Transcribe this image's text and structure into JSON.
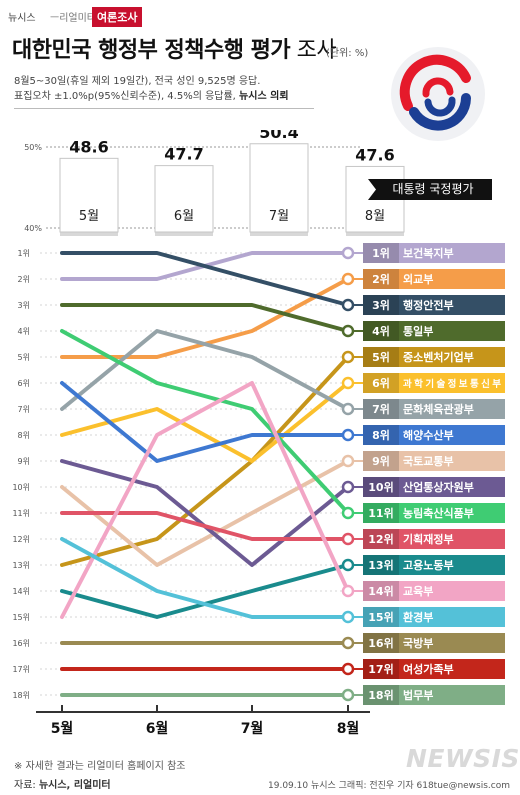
{
  "header": {
    "brand": "뉴시스",
    "brand_sub": "ㅡ리얼미터",
    "badge": "여론조사",
    "title_main": "대한민국 행정부 정책수행 평가",
    "title_light": " 조사",
    "unit": "(단위: %)",
    "info_line1": "8월5~30일(휴일 제외 19일간), 전국 성인 9,525명 응답.",
    "info_line2a": "표집오차 ±1.0%p(95%신뢰수준), 4.5%의 응답률, ",
    "info_line2b": "뉴시스 의뢰"
  },
  "emblem": {
    "name": "government-emblem",
    "colors": [
      "#1c3f94",
      "#e51a2b"
    ]
  },
  "chart_data": [
    {
      "type": "bar",
      "categories": [
        "5월",
        "6월",
        "7월",
        "8월"
      ],
      "values": [
        48.6,
        47.7,
        50.4,
        47.6
      ],
      "ytick_labels": [
        "50%",
        "40%"
      ],
      "ylim": [
        40,
        50
      ],
      "series_label": "대통령 국정평가",
      "bar_color": "#ffffff",
      "label_bg": "#111111"
    },
    {
      "type": "line",
      "chart_kind": "rank bump chart",
      "x": [
        "5월",
        "6월",
        "7월",
        "8월"
      ],
      "y_ticks": [
        "1위",
        "2위",
        "3위",
        "4위",
        "5위",
        "6위",
        "7위",
        "8위",
        "9위",
        "10위",
        "11위",
        "12위",
        "13위",
        "14위",
        "15위",
        "16위",
        "17위",
        "18위"
      ],
      "y_reversed": true,
      "ylim": [
        1,
        18
      ],
      "series": [
        {
          "name": "보건복지부",
          "ranks": [
            2,
            2,
            1,
            1
          ],
          "color": "#b3a6cf",
          "label": "1위"
        },
        {
          "name": "외교부",
          "ranks": [
            5,
            5,
            4,
            2
          ],
          "color": "#f59d49",
          "label": "2위"
        },
        {
          "name": "행정안전부",
          "ranks": [
            1,
            1,
            2,
            3
          ],
          "color": "#344f66",
          "label": "3위"
        },
        {
          "name": "통일부",
          "ranks": [
            3,
            3,
            3,
            4
          ],
          "color": "#4f6b2c",
          "label": "4위"
        },
        {
          "name": "중소벤처기업부",
          "ranks": [
            13,
            12,
            9,
            5
          ],
          "color": "#c6951a",
          "label": "5위"
        },
        {
          "name": "과학기술정보통신부",
          "ranks": [
            8,
            7,
            9,
            6
          ],
          "color": "#fbc02d",
          "label": "6위"
        },
        {
          "name": "문화체육관광부",
          "ranks": [
            7,
            4,
            5,
            7
          ],
          "color": "#95a3a8",
          "label": "7위"
        },
        {
          "name": "해양수산부",
          "ranks": [
            6,
            9,
            8,
            8
          ],
          "color": "#3e78d1",
          "label": "8위"
        },
        {
          "name": "국토교통부",
          "ranks": [
            10,
            13,
            11,
            9
          ],
          "color": "#e8c2a8",
          "label": "9위"
        },
        {
          "name": "산업통상자원부",
          "ranks": [
            9,
            10,
            13,
            10
          ],
          "color": "#6c5a93",
          "label": "10위"
        },
        {
          "name": "농림축산식품부",
          "ranks": [
            4,
            6,
            7,
            11
          ],
          "color": "#3fcc73",
          "label": "11위"
        },
        {
          "name": "기획재정부",
          "ranks": [
            11,
            11,
            12,
            12
          ],
          "color": "#e05467",
          "label": "12위"
        },
        {
          "name": "고용노동부",
          "ranks": [
            14,
            15,
            14,
            13
          ],
          "color": "#1a8b8d",
          "label": "13위"
        },
        {
          "name": "교육부",
          "ranks": [
            15,
            8,
            6,
            14
          ],
          "color": "#f2a5c5",
          "label": "14위"
        },
        {
          "name": "환경부",
          "ranks": [
            12,
            14,
            15,
            15
          ],
          "color": "#54c1d8",
          "label": "15위"
        },
        {
          "name": "국방부",
          "ranks": [
            16,
            16,
            16,
            16
          ],
          "color": "#9a8a52",
          "label": "16위"
        },
        {
          "name": "여성가족부",
          "ranks": [
            17,
            17,
            17,
            17
          ],
          "color": "#c3261b",
          "label": "17위"
        },
        {
          "name": "법무부",
          "ranks": [
            18,
            18,
            18,
            18
          ],
          "color": "#7fae86",
          "label": "18위"
        }
      ]
    }
  ],
  "footer": {
    "note": "※ 자세한 결과는 리얼미터 홈페이지 참조",
    "source_prefix": "자료: ",
    "source": "뉴시스, 리얼미터",
    "credit": "19.09.10 뉴시스 그래픽: 전진우 기자 618tue@newsis.com",
    "watermark": "NEWSIS"
  }
}
